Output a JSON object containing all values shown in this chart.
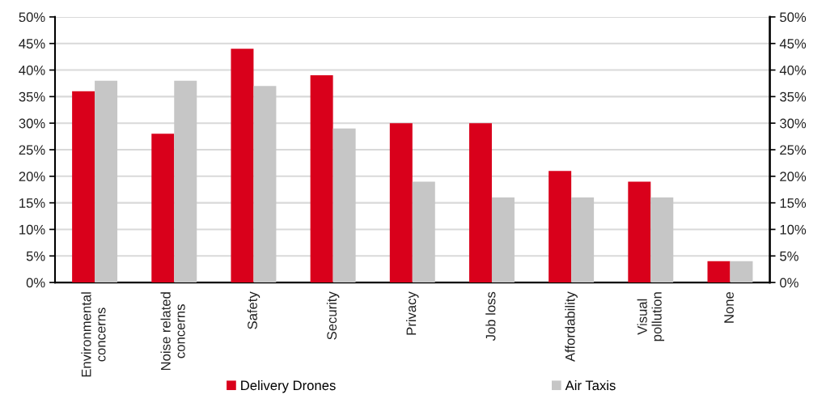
{
  "chart_data": {
    "type": "bar",
    "categories": [
      "Environmental\nconcerns",
      "Noise related\nconcerns",
      "Safety",
      "Security",
      "Privacy",
      "Job loss",
      "Affordability",
      "Visual\npollution",
      "None"
    ],
    "series": [
      {
        "name": "Delivery Drones",
        "color": "#d9001b",
        "values": [
          36,
          28,
          44,
          39,
          30,
          30,
          21,
          19,
          4
        ]
      },
      {
        "name": "Air Taxis",
        "color": "#c6c6c6",
        "values": [
          38,
          38,
          37,
          29,
          19,
          16,
          16,
          16,
          4
        ]
      }
    ],
    "ylim": [
      0,
      50
    ],
    "yticks": [
      {
        "value": 0,
        "label": "0%"
      },
      {
        "value": 5,
        "label": "5%"
      },
      {
        "value": 10,
        "label": "10%"
      },
      {
        "value": 15,
        "label": "15%"
      },
      {
        "value": 20,
        "label": "20%"
      },
      {
        "value": 25,
        "label": "25%"
      },
      {
        "value": 30,
        "label": "30%"
      },
      {
        "value": 35,
        "label": "35%"
      },
      {
        "value": 40,
        "label": "40%"
      },
      {
        "value": 45,
        "label": "45%"
      },
      {
        "value": 50,
        "label": "50%"
      }
    ],
    "y2lim": [
      0,
      50
    ],
    "y2ticks": [
      {
        "value": 0,
        "label": "0%"
      },
      {
        "value": 5,
        "label": "5%"
      },
      {
        "value": 10,
        "label": "10%"
      },
      {
        "value": 15,
        "label": "15%"
      },
      {
        "value": 20,
        "label": "20%"
      },
      {
        "value": 25,
        "label": "25%"
      },
      {
        "value": 30,
        "label": "30%"
      },
      {
        "value": 35,
        "label": "35%"
      },
      {
        "value": 40,
        "label": "40%"
      },
      {
        "value": 45,
        "label": "45%"
      },
      {
        "value": 50,
        "label": "50%"
      }
    ],
    "grid": "y",
    "legend": "bottom"
  }
}
